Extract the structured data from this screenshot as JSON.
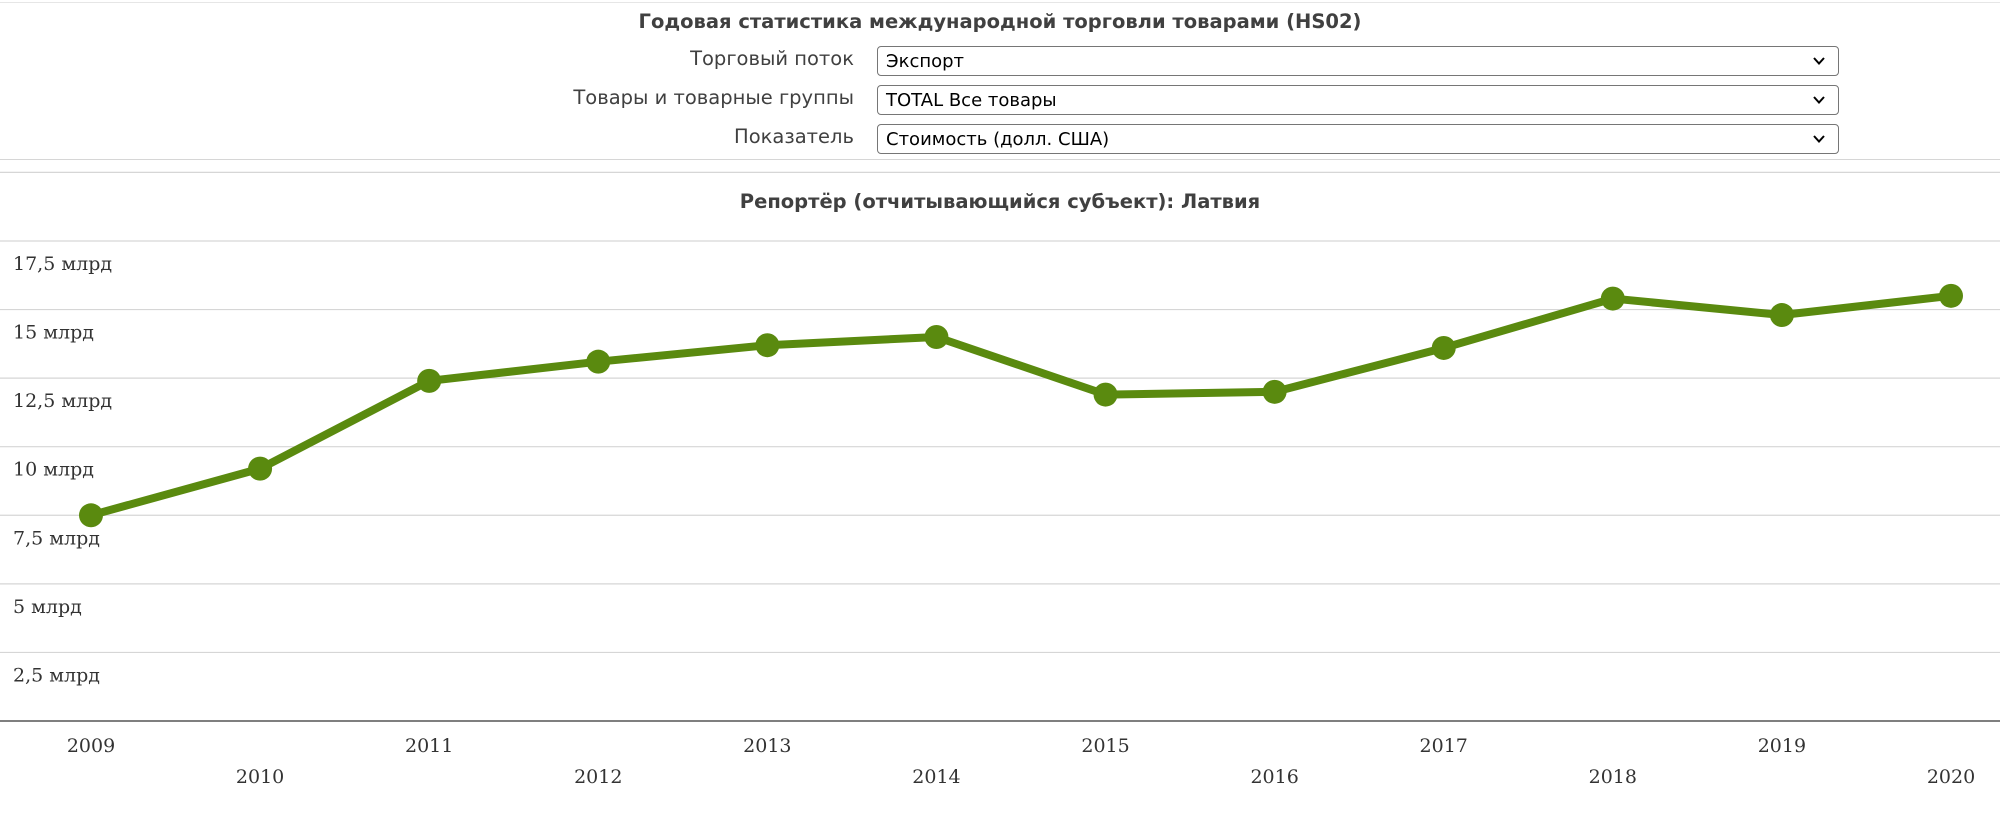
{
  "header": {
    "title": "Годовая статистика международной торговли товарами (HS02)",
    "filters": [
      {
        "label": "Торговый поток",
        "value": "Экспорт"
      },
      {
        "label": "Товары и товарные группы",
        "value": "TOTAL Все товары"
      },
      {
        "label": "Показатель",
        "value": "Стоимость (долл. США)"
      }
    ]
  },
  "chart_data": {
    "type": "line",
    "title": "Репортёр (отчитывающийся субъект): Латвия",
    "xlabel": "",
    "ylabel": "",
    "x": [
      "2009",
      "2010",
      "2011",
      "2012",
      "2013",
      "2014",
      "2015",
      "2016",
      "2017",
      "2018",
      "2019",
      "2020"
    ],
    "series": [
      {
        "values": [
          7.5,
          9.2,
          12.4,
          13.1,
          13.7,
          14.0,
          11.9,
          12.0,
          13.6,
          15.4,
          14.8,
          15.5
        ],
        "unit": "млрд"
      }
    ],
    "y_ticks": [
      "2,5 млрд",
      "5 млрд",
      "7,5 млрд",
      "10 млрд",
      "12,5 млрд",
      "15 млрд",
      "17,5 млрд"
    ],
    "ylim": [
      0,
      17.5
    ],
    "grid": true,
    "legend": "none",
    "colors": {
      "line": "#5a8a0f",
      "grid": "#d6d6d6",
      "axis": "#555555"
    }
  }
}
